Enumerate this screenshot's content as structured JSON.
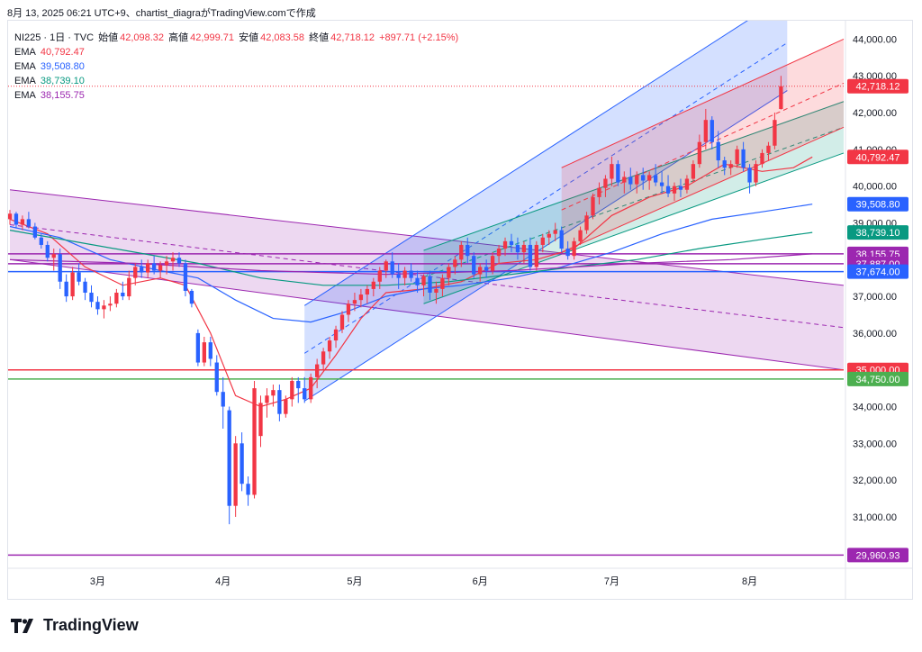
{
  "top_note": "8月 13, 2025 06:21 UTC+9、chartist_diagraがTradingView.comで作成",
  "legend": {
    "symbol": "NI225 · 1日 · TVC",
    "open_label": "始値",
    "open": "42,098.32",
    "high_label": "高値",
    "high": "42,999.71",
    "low_label": "安値",
    "low": "42,083.58",
    "close_label": "終値",
    "close": "42,718.12",
    "change": "+897.71 (+2.15%)",
    "emas": [
      {
        "label": "EMA",
        "value": "40,792.47",
        "color": "#f23645"
      },
      {
        "label": "EMA",
        "value": "39,508.80",
        "color": "#2962ff"
      },
      {
        "label": "EMA",
        "value": "38,739.10",
        "color": "#089981"
      },
      {
        "label": "EMA",
        "value": "38,155.75",
        "color": "#9c27b0"
      }
    ]
  },
  "brand": "TradingView",
  "colors": {
    "up": "#f23645",
    "down": "#2962ff",
    "ema1": "#f23645",
    "ema2": "#2962ff",
    "ema3": "#089981",
    "ema4": "#9c27b0"
  },
  "chart_data": {
    "type": "candlestick",
    "y_range": [
      29700,
      44500
    ],
    "y_ticks": [
      "44,000.00",
      "43,000.00",
      "42,000.00",
      "41,000.00",
      "40,000.00",
      "39,000.00",
      "38,000.00",
      "37,000.00",
      "36,000.00",
      "35,000.00",
      "34,000.00",
      "33,000.00",
      "32,000.00",
      "31,000.00"
    ],
    "x_labels": [
      {
        "label": "3月",
        "index": 14
      },
      {
        "label": "4月",
        "index": 34
      },
      {
        "label": "5月",
        "index": 55
      },
      {
        "label": "6月",
        "index": 75
      },
      {
        "label": "7月",
        "index": 96
      },
      {
        "label": "8月",
        "index": 118
      }
    ],
    "index_range": [
      0,
      133
    ],
    "candles": [
      [
        39100,
        39350,
        38950,
        39250
      ],
      [
        39250,
        39300,
        38850,
        38950
      ],
      [
        38950,
        39200,
        38800,
        39100
      ],
      [
        39100,
        39300,
        38850,
        38900
      ],
      [
        38900,
        39000,
        38550,
        38600
      ],
      [
        38600,
        38700,
        38300,
        38400
      ],
      [
        38400,
        38500,
        37950,
        38050
      ],
      [
        38050,
        38300,
        37700,
        38150
      ],
      [
        38150,
        38300,
        37200,
        37400
      ],
      [
        37400,
        37600,
        36850,
        37000
      ],
      [
        37000,
        37800,
        36900,
        37650
      ],
      [
        37650,
        37900,
        37300,
        37400
      ],
      [
        37400,
        37500,
        36900,
        37100
      ],
      [
        37100,
        37300,
        36700,
        36850
      ],
      [
        36850,
        37000,
        36500,
        36650
      ],
      [
        36650,
        36900,
        36400,
        36750
      ],
      [
        36750,
        37000,
        36600,
        36800
      ],
      [
        36800,
        37200,
        36700,
        37100
      ],
      [
        37100,
        37400,
        36900,
        37000
      ],
      [
        37000,
        37700,
        36900,
        37500
      ],
      [
        37500,
        37900,
        37300,
        37800
      ],
      [
        37800,
        38000,
        37500,
        37650
      ],
      [
        37650,
        38000,
        37500,
        37900
      ],
      [
        37900,
        38100,
        37600,
        37700
      ],
      [
        37700,
        37950,
        37500,
        37850
      ],
      [
        37850,
        38100,
        37600,
        37950
      ],
      [
        37950,
        38200,
        37700,
        38050
      ],
      [
        38050,
        38200,
        37800,
        37900
      ],
      [
        37900,
        38000,
        37000,
        37150
      ],
      [
        37150,
        37200,
        36700,
        36800
      ],
      [
        36000,
        36100,
        35100,
        35200
      ],
      [
        35200,
        35900,
        35100,
        35750
      ],
      [
        35750,
        35900,
        35100,
        35300
      ],
      [
        35200,
        35400,
        34300,
        34400
      ],
      [
        34400,
        34800,
        33400,
        34000
      ],
      [
        33900,
        34000,
        30800,
        31300
      ],
      [
        31300,
        33200,
        31000,
        33000
      ],
      [
        33000,
        33300,
        31700,
        31900
      ],
      [
        31900,
        32100,
        31300,
        31600
      ],
      [
        31600,
        34700,
        31500,
        34500
      ],
      [
        33200,
        34300,
        32900,
        34100
      ],
      [
        34100,
        34500,
        33700,
        34300
      ],
      [
        34300,
        34600,
        34000,
        34450
      ],
      [
        34450,
        34600,
        33600,
        33800
      ],
      [
        33800,
        34300,
        33700,
        34200
      ],
      [
        34200,
        34800,
        34000,
        34700
      ],
      [
        34700,
        34800,
        34100,
        34500
      ],
      [
        34500,
        34800,
        34100,
        34200
      ],
      [
        34200,
        34900,
        34100,
        34800
      ],
      [
        34800,
        35300,
        34500,
        35150
      ],
      [
        35150,
        35600,
        35000,
        35500
      ],
      [
        35500,
        35900,
        35300,
        35800
      ],
      [
        35800,
        36200,
        35600,
        36100
      ],
      [
        36100,
        36600,
        36000,
        36500
      ],
      [
        36500,
        36900,
        36300,
        36800
      ],
      [
        36800,
        37100,
        36600,
        36900
      ],
      [
        36900,
        37200,
        36700,
        37050
      ],
      [
        37050,
        37300,
        36800,
        37200
      ],
      [
        37200,
        37500,
        37000,
        37400
      ],
      [
        37400,
        37800,
        37200,
        37700
      ],
      [
        37700,
        38000,
        37500,
        37950
      ],
      [
        37950,
        38200,
        37500,
        37600
      ],
      [
        37600,
        37900,
        37200,
        37500
      ],
      [
        37500,
        37800,
        37300,
        37700
      ],
      [
        37700,
        37900,
        37400,
        37500
      ],
      [
        37500,
        37700,
        37100,
        37300
      ],
      [
        37300,
        37600,
        37000,
        37550
      ],
      [
        37550,
        37700,
        36900,
        37100
      ],
      [
        37100,
        37400,
        36800,
        37200
      ],
      [
        37200,
        37600,
        37000,
        37500
      ],
      [
        37500,
        37900,
        37300,
        37800
      ],
      [
        37800,
        38100,
        37600,
        38000
      ],
      [
        38000,
        38500,
        37800,
        38400
      ],
      [
        38400,
        38600,
        37900,
        38100
      ],
      [
        38100,
        38200,
        37500,
        37600
      ],
      [
        37600,
        37900,
        37400,
        37800
      ],
      [
        37800,
        38000,
        37500,
        37700
      ],
      [
        37700,
        38200,
        37600,
        38100
      ],
      [
        38100,
        38400,
        37900,
        38300
      ],
      [
        38300,
        38600,
        38100,
        38500
      ],
      [
        38500,
        38700,
        38200,
        38400
      ],
      [
        38400,
        38600,
        38000,
        38200
      ],
      [
        38200,
        38500,
        37900,
        38400
      ],
      [
        38400,
        38600,
        37700,
        37800
      ],
      [
        37800,
        38500,
        37700,
        38400
      ],
      [
        38400,
        38700,
        38200,
        38600
      ],
      [
        38600,
        38800,
        38400,
        38700
      ],
      [
        38700,
        39000,
        38500,
        38800
      ],
      [
        38800,
        38900,
        38200,
        38300
      ],
      [
        38300,
        38500,
        38000,
        38100
      ],
      [
        38100,
        38600,
        38000,
        38500
      ],
      [
        38500,
        38900,
        38400,
        38800
      ],
      [
        38800,
        39300,
        38700,
        39200
      ],
      [
        39200,
        39800,
        39100,
        39700
      ],
      [
        39700,
        40100,
        39500,
        39950
      ],
      [
        39950,
        40300,
        39700,
        40200
      ],
      [
        40200,
        40800,
        40000,
        40600
      ],
      [
        40600,
        40700,
        40000,
        40100
      ],
      [
        40100,
        40400,
        39800,
        40250
      ],
      [
        40250,
        40500,
        39900,
        40050
      ],
      [
        40050,
        40400,
        39800,
        40300
      ],
      [
        40300,
        40500,
        39900,
        40150
      ],
      [
        40150,
        40400,
        39900,
        40300
      ],
      [
        40300,
        40600,
        40000,
        40100
      ],
      [
        40100,
        40400,
        39800,
        40000
      ],
      [
        40000,
        40300,
        39700,
        39800
      ],
      [
        39800,
        40100,
        39600,
        40000
      ],
      [
        40000,
        40200,
        39700,
        39900
      ],
      [
        39900,
        40300,
        39800,
        40200
      ],
      [
        40200,
        40700,
        40100,
        40600
      ],
      [
        40600,
        41400,
        40500,
        41200
      ],
      [
        41200,
        42100,
        41000,
        41800
      ],
      [
        41800,
        41900,
        41000,
        41200
      ],
      [
        41200,
        41500,
        40500,
        40700
      ],
      [
        40700,
        40800,
        40300,
        40500
      ],
      [
        40500,
        40700,
        40300,
        40600
      ],
      [
        40600,
        41100,
        40500,
        41000
      ],
      [
        41000,
        41200,
        40400,
        40500
      ],
      [
        40500,
        40600,
        39800,
        40100
      ],
      [
        40100,
        40700,
        40000,
        40600
      ],
      [
        40600,
        41000,
        40500,
        40900
      ],
      [
        40900,
        41200,
        40700,
        41100
      ],
      [
        41100,
        42000,
        41000,
        41800
      ],
      [
        42098.32,
        42999.71,
        42083.58,
        42718.12
      ]
    ],
    "ema_series": [
      {
        "name": "EMA",
        "value": "40,792.47",
        "color": "#f23645",
        "points": [
          [
            0,
            39100
          ],
          [
            6,
            38700
          ],
          [
            12,
            37800
          ],
          [
            18,
            37300
          ],
          [
            24,
            37500
          ],
          [
            28,
            37300
          ],
          [
            32,
            36000
          ],
          [
            36,
            34300
          ],
          [
            40,
            34000
          ],
          [
            44,
            34200
          ],
          [
            48,
            34500
          ],
          [
            52,
            35400
          ],
          [
            56,
            36400
          ],
          [
            60,
            37100
          ],
          [
            66,
            37200
          ],
          [
            72,
            37400
          ],
          [
            78,
            37900
          ],
          [
            84,
            38000
          ],
          [
            90,
            38300
          ],
          [
            96,
            39200
          ],
          [
            102,
            39700
          ],
          [
            108,
            40000
          ],
          [
            114,
            40600
          ],
          [
            120,
            40400
          ],
          [
            125,
            40500
          ],
          [
            128,
            40792
          ]
        ]
      },
      {
        "name": "EMA",
        "value": "39,508.80",
        "color": "#2962ff",
        "points": [
          [
            0,
            38900
          ],
          [
            8,
            38600
          ],
          [
            16,
            38000
          ],
          [
            24,
            37700
          ],
          [
            30,
            37500
          ],
          [
            36,
            36900
          ],
          [
            42,
            36400
          ],
          [
            48,
            36300
          ],
          [
            54,
            36600
          ],
          [
            60,
            37000
          ],
          [
            66,
            37200
          ],
          [
            72,
            37300
          ],
          [
            80,
            37500
          ],
          [
            88,
            37800
          ],
          [
            96,
            38200
          ],
          [
            104,
            38700
          ],
          [
            112,
            39100
          ],
          [
            120,
            39300
          ],
          [
            128,
            39509
          ]
        ]
      },
      {
        "name": "EMA",
        "value": "38,739.10",
        "color": "#089981",
        "points": [
          [
            0,
            38800
          ],
          [
            10,
            38500
          ],
          [
            20,
            38200
          ],
          [
            30,
            37900
          ],
          [
            40,
            37500
          ],
          [
            50,
            37300
          ],
          [
            60,
            37300
          ],
          [
            70,
            37400
          ],
          [
            80,
            37600
          ],
          [
            90,
            37800
          ],
          [
            100,
            38000
          ],
          [
            110,
            38300
          ],
          [
            120,
            38550
          ],
          [
            128,
            38739
          ]
        ]
      },
      {
        "name": "EMA",
        "value": "38,155.75",
        "color": "#9c27b0",
        "points": [
          [
            0,
            38000
          ],
          [
            20,
            37900
          ],
          [
            40,
            37700
          ],
          [
            60,
            37600
          ],
          [
            80,
            37700
          ],
          [
            100,
            37900
          ],
          [
            115,
            38000
          ],
          [
            128,
            38156
          ]
        ]
      }
    ],
    "horizontal_levels": [
      {
        "value": 42718.12,
        "label": "42,718.12",
        "color": "#f23645",
        "style": "dotted"
      },
      {
        "value": 38155.75,
        "label": "38,155.75",
        "color": "#9c27b0",
        "style": "solid"
      },
      {
        "value": 37887,
        "label": "37,887.00",
        "color": "#9c27b0",
        "style": "solid"
      },
      {
        "value": 37674,
        "label": "37,674.00",
        "color": "#2962ff",
        "style": "solid"
      },
      {
        "value": 35000,
        "label": "35,000.00",
        "color": "#f23645",
        "style": "solid"
      },
      {
        "value": 34750,
        "label": "34,750.00",
        "color": "#4caf50",
        "style": "solid"
      },
      {
        "value": 29960.93,
        "label": "29,960.93",
        "color": "#9c27b0",
        "style": "solid"
      }
    ],
    "price_badges": [
      {
        "value": 40792.47,
        "label": "40,792.47",
        "color": "#f23645"
      },
      {
        "value": 39508.8,
        "label": "39,508.80",
        "color": "#2962ff"
      },
      {
        "value": 38739.1,
        "label": "38,739.10",
        "color": "#089981"
      }
    ],
    "channels": [
      {
        "name": "purple-down-channel",
        "fill": "rgba(156,39,176,0.18)",
        "stroke": "#9c27b0",
        "p1": [
          0,
          39900
        ],
        "p2": [
          133,
          37300
        ],
        "p3": [
          0,
          38000
        ],
        "p4": [
          133,
          35000
        ]
      },
      {
        "name": "blue-up-channel",
        "fill": "rgba(41,98,255,0.20)",
        "stroke": "#2962ff",
        "p1": [
          47,
          36750
        ],
        "p2": [
          124,
          45200
        ],
        "p3": [
          47,
          34150
        ],
        "p4": [
          124,
          42600
        ]
      },
      {
        "name": "green-up-channel",
        "fill": "rgba(8,153,129,0.18)",
        "stroke": "#089981",
        "p1": [
          66,
          38250
        ],
        "p2": [
          133,
          42300
        ],
        "p3": [
          66,
          36800
        ],
        "p4": [
          133,
          40900
        ]
      },
      {
        "name": "red-up-channel",
        "fill": "rgba(242,54,69,0.18)",
        "stroke": "#f23645",
        "p1": [
          88,
          40500
        ],
        "p2": [
          133,
          44000
        ],
        "p3": [
          88,
          38200
        ],
        "p4": [
          133,
          41600
        ]
      }
    ]
  }
}
